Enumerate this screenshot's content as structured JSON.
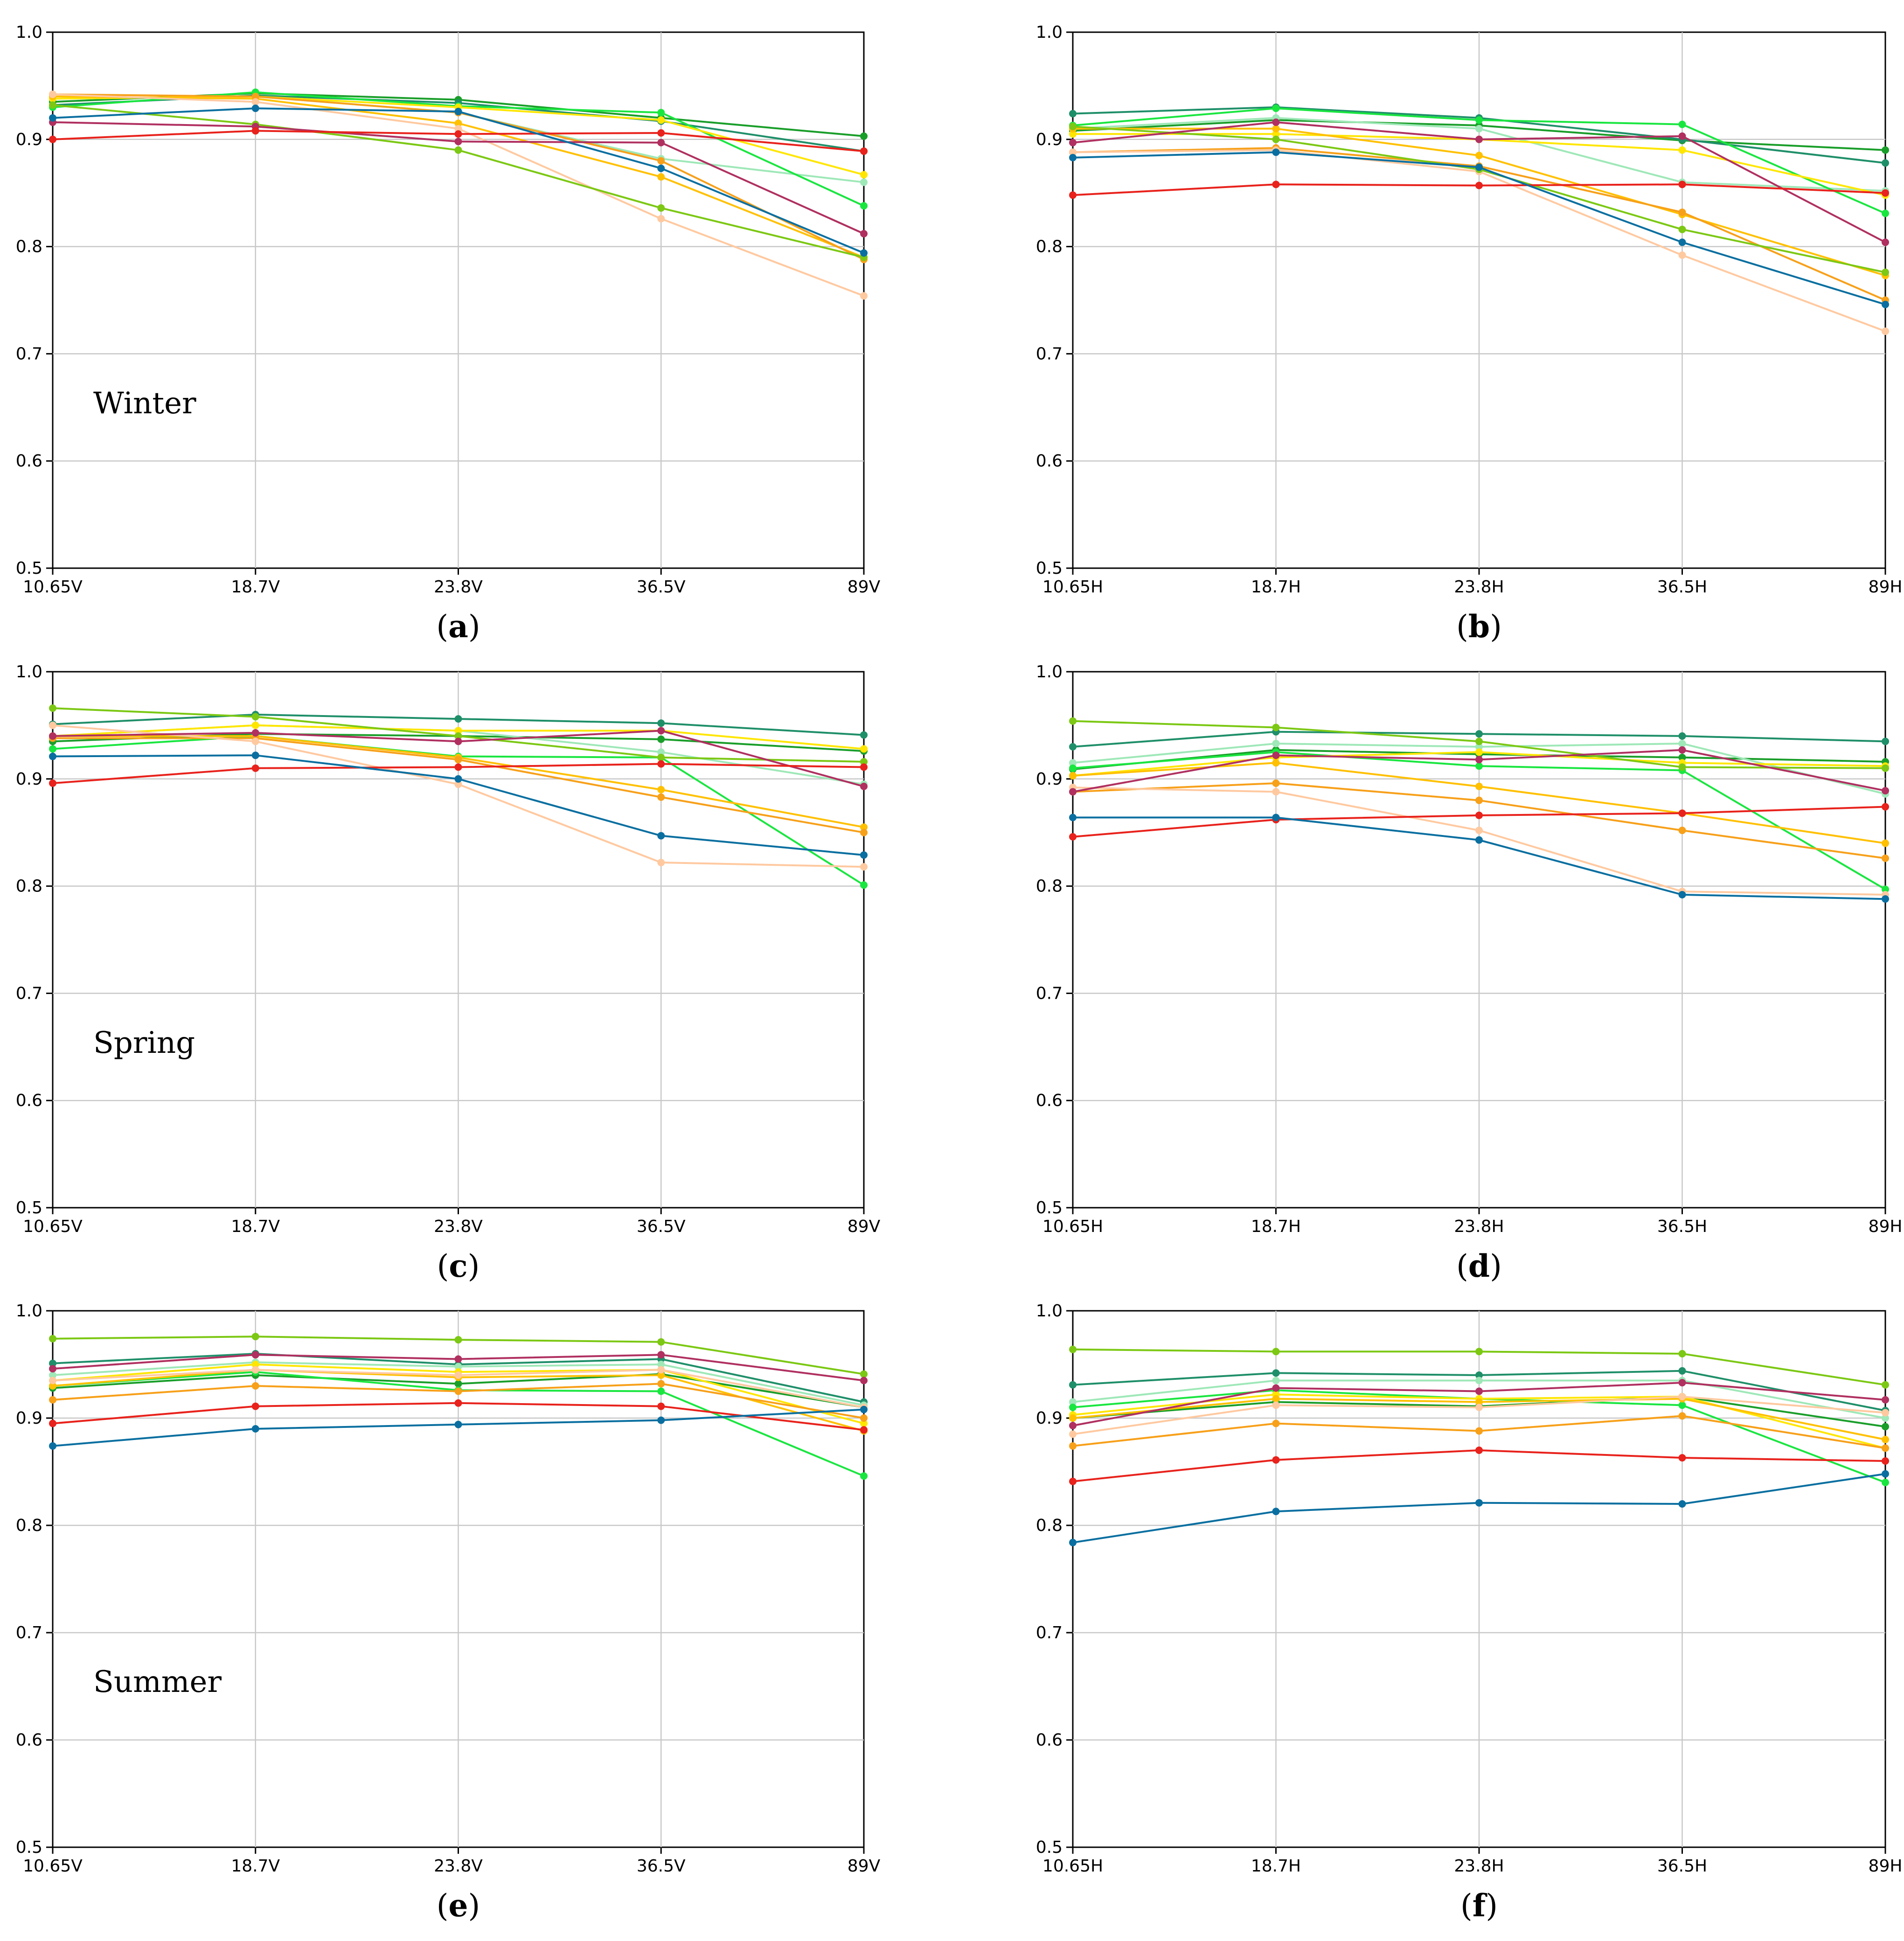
{
  "figure": {
    "captions": [
      "a",
      "b",
      "c",
      "d",
      "e",
      "f"
    ]
  },
  "chart_data": [
    {
      "panel": "a",
      "type": "line",
      "label": "Winter",
      "categories": [
        "10.65V",
        "18.7V",
        "23.8V",
        "36.5V",
        "89V"
      ],
      "ylim": [
        0.5,
        1.0
      ],
      "yticks": [
        "0.5",
        "0.6",
        "0.7",
        "0.8",
        "0.9",
        "1.0"
      ],
      "grid": true,
      "series": [
        {
          "color": "#1a9e2a",
          "values": [
            0.935,
            0.943,
            0.937,
            0.92,
            0.903
          ]
        },
        {
          "color": "#1f8f6a",
          "values": [
            0.932,
            0.941,
            0.934,
            0.917,
            0.889
          ]
        },
        {
          "color": "#9fe8b8",
          "values": [
            0.938,
            0.94,
            0.925,
            0.882,
            0.86
          ]
        },
        {
          "color": "#1ae640",
          "values": [
            0.93,
            0.944,
            0.931,
            0.925,
            0.838
          ]
        },
        {
          "color": "#ffe600",
          "values": [
            0.938,
            0.94,
            0.93,
            0.918,
            0.867
          ]
        },
        {
          "color": "#ffc000",
          "values": [
            0.94,
            0.938,
            0.915,
            0.865,
            0.79
          ]
        },
        {
          "color": "#f7a01a",
          "values": [
            0.942,
            0.94,
            0.925,
            0.88,
            0.788
          ]
        },
        {
          "color": "#ffc9a0",
          "values": [
            0.942,
            0.935,
            0.91,
            0.826,
            0.754
          ]
        },
        {
          "color": "#7cc814",
          "values": [
            0.932,
            0.914,
            0.89,
            0.836,
            0.79
          ]
        },
        {
          "color": "#b03060",
          "values": [
            0.916,
            0.912,
            0.898,
            0.897,
            0.812
          ]
        },
        {
          "color": "#e8221c",
          "values": [
            0.9,
            0.908,
            0.905,
            0.906,
            0.889
          ]
        },
        {
          "color": "#0a6fa0",
          "values": [
            0.92,
            0.929,
            0.926,
            0.873,
            0.794
          ]
        }
      ]
    },
    {
      "panel": "b",
      "type": "line",
      "label": "",
      "categories": [
        "10.65H",
        "18.7H",
        "23.8H",
        "36.5H",
        "89H"
      ],
      "ylim": [
        0.5,
        1.0
      ],
      "yticks": [
        "0.5",
        "0.6",
        "0.7",
        "0.8",
        "0.9",
        "1.0"
      ],
      "grid": true,
      "series": [
        {
          "color": "#1a9e2a",
          "values": [
            0.908,
            0.918,
            0.913,
            0.899,
            0.89
          ]
        },
        {
          "color": "#1f8f6a",
          "values": [
            0.924,
            0.93,
            0.92,
            0.9,
            0.878
          ]
        },
        {
          "color": "#9fe8b8",
          "values": [
            0.91,
            0.92,
            0.91,
            0.86,
            0.852
          ]
        },
        {
          "color": "#1ae640",
          "values": [
            0.913,
            0.929,
            0.918,
            0.914,
            0.831
          ]
        },
        {
          "color": "#ffe600",
          "values": [
            0.905,
            0.905,
            0.9,
            0.89,
            0.848
          ]
        },
        {
          "color": "#ffc000",
          "values": [
            0.91,
            0.91,
            0.885,
            0.83,
            0.773
          ]
        },
        {
          "color": "#f7a01a",
          "values": [
            0.888,
            0.892,
            0.875,
            0.832,
            0.75
          ]
        },
        {
          "color": "#ffc9a0",
          "values": [
            0.888,
            0.89,
            0.87,
            0.792,
            0.721
          ]
        },
        {
          "color": "#7cc814",
          "values": [
            0.912,
            0.9,
            0.872,
            0.816,
            0.776
          ]
        },
        {
          "color": "#b03060",
          "values": [
            0.897,
            0.916,
            0.9,
            0.903,
            0.804
          ]
        },
        {
          "color": "#e8221c",
          "values": [
            0.848,
            0.858,
            0.857,
            0.858,
            0.85
          ]
        },
        {
          "color": "#0a6fa0",
          "values": [
            0.883,
            0.888,
            0.874,
            0.804,
            0.746
          ]
        }
      ]
    },
    {
      "panel": "c",
      "type": "line",
      "label": "Spring",
      "categories": [
        "10.65V",
        "18.7V",
        "23.8V",
        "36.5V",
        "89V"
      ],
      "ylim": [
        0.5,
        1.0
      ],
      "yticks": [
        "0.5",
        "0.6",
        "0.7",
        "0.8",
        "0.9",
        "1.0"
      ],
      "grid": true,
      "series": [
        {
          "color": "#1a9e2a",
          "values": [
            0.935,
            0.942,
            0.94,
            0.937,
            0.926
          ]
        },
        {
          "color": "#1f8f6a",
          "values": [
            0.951,
            0.96,
            0.956,
            0.952,
            0.941
          ]
        },
        {
          "color": "#9fe8b8",
          "values": [
            0.94,
            0.95,
            0.945,
            0.925,
            0.895
          ]
        },
        {
          "color": "#1ae640",
          "values": [
            0.928,
            0.94,
            0.921,
            0.92,
            0.801
          ]
        },
        {
          "color": "#ffe600",
          "values": [
            0.94,
            0.95,
            0.945,
            0.945,
            0.928
          ]
        },
        {
          "color": "#ffc000",
          "values": [
            0.94,
            0.94,
            0.92,
            0.89,
            0.855
          ]
        },
        {
          "color": "#f7a01a",
          "values": [
            0.938,
            0.938,
            0.918,
            0.883,
            0.85
          ]
        },
        {
          "color": "#ffc9a0",
          "values": [
            0.95,
            0.935,
            0.895,
            0.822,
            0.818
          ]
        },
        {
          "color": "#7cc814",
          "values": [
            0.966,
            0.958,
            0.94,
            0.92,
            0.916
          ]
        },
        {
          "color": "#b03060",
          "values": [
            0.94,
            0.943,
            0.935,
            0.945,
            0.893
          ]
        },
        {
          "color": "#e8221c",
          "values": [
            0.896,
            0.91,
            0.911,
            0.914,
            0.911
          ]
        },
        {
          "color": "#0a6fa0",
          "values": [
            0.921,
            0.922,
            0.9,
            0.847,
            0.829
          ]
        }
      ]
    },
    {
      "panel": "d",
      "type": "line",
      "label": "",
      "categories": [
        "10.65H",
        "18.7H",
        "23.8H",
        "36.5H",
        "89H"
      ],
      "ylim": [
        0.5,
        1.0
      ],
      "yticks": [
        "0.5",
        "0.6",
        "0.7",
        "0.8",
        "0.9",
        "1.0"
      ],
      "grid": true,
      "series": [
        {
          "color": "#1a9e2a",
          "values": [
            0.909,
            0.927,
            0.923,
            0.92,
            0.916
          ]
        },
        {
          "color": "#1f8f6a",
          "values": [
            0.93,
            0.944,
            0.942,
            0.94,
            0.935
          ]
        },
        {
          "color": "#9fe8b8",
          "values": [
            0.915,
            0.933,
            0.93,
            0.933,
            0.886
          ]
        },
        {
          "color": "#1ae640",
          "values": [
            0.91,
            0.925,
            0.912,
            0.908,
            0.797
          ]
        },
        {
          "color": "#ffe600",
          "values": [
            0.903,
            0.92,
            0.925,
            0.915,
            0.912
          ]
        },
        {
          "color": "#ffc000",
          "values": [
            0.903,
            0.915,
            0.893,
            0.868,
            0.84
          ]
        },
        {
          "color": "#f7a01a",
          "values": [
            0.888,
            0.896,
            0.88,
            0.852,
            0.826
          ]
        },
        {
          "color": "#ffc9a0",
          "values": [
            0.892,
            0.888,
            0.852,
            0.795,
            0.792
          ]
        },
        {
          "color": "#7cc814",
          "values": [
            0.954,
            0.948,
            0.935,
            0.911,
            0.91
          ]
        },
        {
          "color": "#b03060",
          "values": [
            0.888,
            0.922,
            0.918,
            0.927,
            0.889
          ]
        },
        {
          "color": "#e8221c",
          "values": [
            0.846,
            0.862,
            0.866,
            0.868,
            0.874
          ]
        },
        {
          "color": "#0a6fa0",
          "values": [
            0.864,
            0.864,
            0.843,
            0.792,
            0.788
          ]
        }
      ]
    },
    {
      "panel": "e",
      "type": "line",
      "label": "Summer",
      "categories": [
        "10.65V",
        "18.7V",
        "23.8V",
        "36.5V",
        "89V"
      ],
      "ylim": [
        0.5,
        1.0
      ],
      "yticks": [
        "0.5",
        "0.6",
        "0.7",
        "0.8",
        "0.9",
        "1.0"
      ],
      "grid": true,
      "series": [
        {
          "color": "#1a9e2a",
          "values": [
            0.928,
            0.94,
            0.932,
            0.941,
            0.91
          ]
        },
        {
          "color": "#1f8f6a",
          "values": [
            0.951,
            0.96,
            0.95,
            0.955,
            0.915
          ]
        },
        {
          "color": "#9fe8b8",
          "values": [
            0.94,
            0.952,
            0.948,
            0.95,
            0.912
          ]
        },
        {
          "color": "#1ae640",
          "values": [
            0.93,
            0.943,
            0.926,
            0.925,
            0.846
          ]
        },
        {
          "color": "#ffe600",
          "values": [
            0.935,
            0.95,
            0.943,
            0.945,
            0.895
          ]
        },
        {
          "color": "#ffc000",
          "values": [
            0.93,
            0.945,
            0.938,
            0.94,
            0.888
          ]
        },
        {
          "color": "#f7a01a",
          "values": [
            0.917,
            0.93,
            0.925,
            0.932,
            0.9
          ]
        },
        {
          "color": "#ffc9a0",
          "values": [
            0.935,
            0.945,
            0.94,
            0.945,
            0.91
          ]
        },
        {
          "color": "#7cc814",
          "values": [
            0.974,
            0.976,
            0.973,
            0.971,
            0.941
          ]
        },
        {
          "color": "#b03060",
          "values": [
            0.946,
            0.959,
            0.955,
            0.959,
            0.935
          ]
        },
        {
          "color": "#e8221c",
          "values": [
            0.895,
            0.911,
            0.914,
            0.911,
            0.889
          ]
        },
        {
          "color": "#0a6fa0",
          "values": [
            0.874,
            0.89,
            0.894,
            0.898,
            0.908
          ]
        }
      ]
    },
    {
      "panel": "f",
      "type": "line",
      "label": "",
      "categories": [
        "10.65H",
        "18.7H",
        "23.8H",
        "36.5H",
        "89H"
      ],
      "ylim": [
        0.5,
        1.0
      ],
      "yticks": [
        "0.5",
        "0.6",
        "0.7",
        "0.8",
        "0.9",
        "1.0"
      ],
      "grid": true,
      "series": [
        {
          "color": "#1a9e2a",
          "values": [
            0.9,
            0.915,
            0.911,
            0.92,
            0.892
          ]
        },
        {
          "color": "#1f8f6a",
          "values": [
            0.931,
            0.942,
            0.94,
            0.944,
            0.907
          ]
        },
        {
          "color": "#9fe8b8",
          "values": [
            0.915,
            0.935,
            0.935,
            0.935,
            0.9
          ]
        },
        {
          "color": "#1ae640",
          "values": [
            0.91,
            0.926,
            0.918,
            0.912,
            0.84
          ]
        },
        {
          "color": "#ffe600",
          "values": [
            0.903,
            0.922,
            0.918,
            0.92,
            0.872
          ]
        },
        {
          "color": "#ffc000",
          "values": [
            0.9,
            0.918,
            0.915,
            0.918,
            0.88
          ]
        },
        {
          "color": "#f7a01a",
          "values": [
            0.874,
            0.895,
            0.888,
            0.902,
            0.872
          ]
        },
        {
          "color": "#ffc9a0",
          "values": [
            0.885,
            0.912,
            0.91,
            0.92,
            0.905
          ]
        },
        {
          "color": "#7cc814",
          "values": [
            0.964,
            0.962,
            0.962,
            0.96,
            0.931
          ]
        },
        {
          "color": "#b03060",
          "values": [
            0.893,
            0.928,
            0.925,
            0.933,
            0.917
          ]
        },
        {
          "color": "#e8221c",
          "values": [
            0.841,
            0.861,
            0.87,
            0.863,
            0.86
          ]
        },
        {
          "color": "#0a6fa0",
          "values": [
            0.784,
            0.813,
            0.821,
            0.82,
            0.848
          ]
        }
      ]
    }
  ]
}
